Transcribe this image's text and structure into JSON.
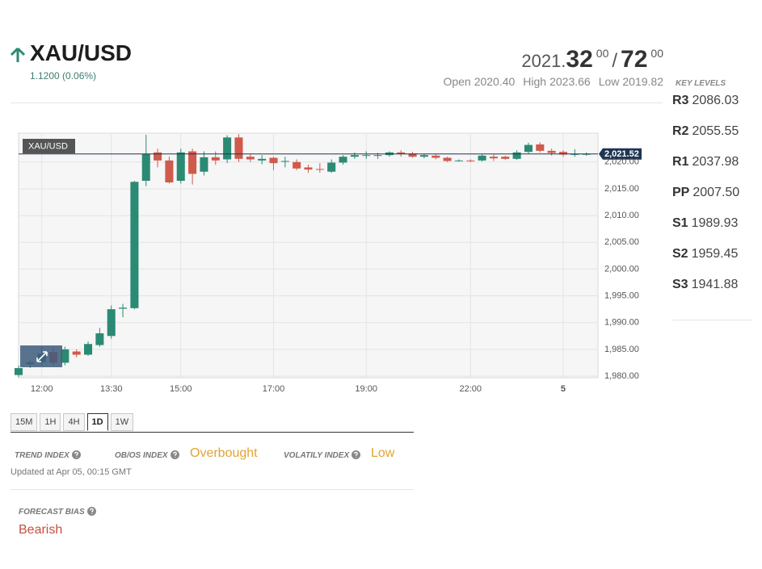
{
  "header": {
    "symbol": "XAU/USD",
    "change": "1.1200 (0.06%)",
    "bid_prefix": "2021.",
    "bid_big": "32",
    "bid_small": "00",
    "separator": "/",
    "ask_big": "72",
    "ask_small": "00",
    "open_label": "Open",
    "open": "2020.40",
    "high_label": "High",
    "high": "2023.66",
    "low_label": "Low",
    "low": "2019.82"
  },
  "key_levels": {
    "title": "KEY LEVELS",
    "levels": [
      {
        "name": "R3",
        "value": "2086.03"
      },
      {
        "name": "R2",
        "value": "2055.55"
      },
      {
        "name": "R1",
        "value": "2037.98"
      },
      {
        "name": "PP",
        "value": "2007.50"
      },
      {
        "name": "S1",
        "value": "1989.93"
      },
      {
        "name": "S2",
        "value": "1959.45"
      },
      {
        "name": "S3",
        "value": "1941.88"
      }
    ]
  },
  "chart_data": {
    "type": "candlestick",
    "grid": true,
    "series": [
      {
        "name": "XAU/USD",
        "up_color": "#2b8a73",
        "down_color": "#d05a4b",
        "open": [
          1980.2,
          1982.2,
          1982.6,
          1984.5,
          1982.5,
          1984.6,
          1984.0,
          1985.8,
          1987.5,
          1992.6,
          1992.7,
          2016.5,
          2021.8,
          2020.3,
          2016.5,
          2022.0,
          2018.2,
          2020.9,
          2020.5,
          2024.6,
          2021.0,
          2020.3,
          2020.8,
          2020.1,
          2020.0,
          2019.0,
          2018.7,
          2018.2,
          2019.9,
          2021.0,
          2021.3,
          2021.3,
          2021.3,
          2021.8,
          2021.6,
          2021.0,
          2021.2,
          2020.8,
          2020.3,
          2020.3,
          2020.3,
          2021.0,
          2021.0,
          2020.6,
          2021.9,
          2023.3,
          2022.1,
          2021.9,
          2021.5,
          2021.5
        ],
        "high": [
          1982.0,
          1983.0,
          1985.5,
          1985.5,
          1985.5,
          1985.0,
          1986.5,
          1989.0,
          1993.2,
          1993.5,
          2016.5,
          2025.1,
          2022.5,
          2021.0,
          2022.5,
          2022.5,
          2022.0,
          2022.0,
          2025.0,
          2025.2,
          2021.5,
          2021.3,
          2021.0,
          2021.0,
          2020.5,
          2019.5,
          2019.8,
          2020.5,
          2021.3,
          2021.8,
          2022.0,
          2021.7,
          2022.0,
          2022.2,
          2021.9,
          2021.6,
          2021.5,
          2021.0,
          2020.5,
          2020.5,
          2021.5,
          2021.4,
          2021.2,
          2022.2,
          2023.6,
          2023.7,
          2022.5,
          2022.2,
          2022.4,
          2021.8
        ],
        "low": [
          1979.8,
          1981.5,
          1982.0,
          1982.0,
          1982.0,
          1983.5,
          1983.8,
          1985.5,
          1987.0,
          1991.0,
          1992.5,
          2015.5,
          2019.0,
          2016.0,
          2016.0,
          2015.8,
          2017.5,
          2019.5,
          2019.8,
          2020.0,
          2020.0,
          2019.6,
          2018.5,
          2019.0,
          2018.5,
          2018.0,
          2018.0,
          2018.0,
          2019.5,
          2020.6,
          2020.6,
          2020.6,
          2021.0,
          2021.0,
          2020.8,
          2020.7,
          2020.5,
          2020.0,
          2020.1,
          2020.0,
          2020.1,
          2020.2,
          2020.4,
          2020.4,
          2021.6,
          2021.8,
          2021.2,
          2021.0,
          2021.0,
          2021.2
        ],
        "close": [
          1981.5,
          1982.6,
          1984.2,
          1982.5,
          1985.0,
          1984.0,
          1986.0,
          1988.0,
          1992.5,
          1992.8,
          2016.3,
          2021.5,
          2020.3,
          2016.2,
          2021.8,
          2017.8,
          2020.9,
          2020.3,
          2024.6,
          2020.6,
          2020.5,
          2020.6,
          2019.8,
          2020.2,
          2018.8,
          2018.6,
          2018.6,
          2019.9,
          2021.0,
          2021.3,
          2021.3,
          2021.3,
          2021.8,
          2021.5,
          2021.0,
          2021.3,
          2020.8,
          2020.2,
          2020.3,
          2020.2,
          2021.2,
          2020.7,
          2020.6,
          2021.8,
          2023.2,
          2022.1,
          2021.7,
          2021.4,
          2021.5,
          2021.52
        ]
      }
    ],
    "x": [
      0,
      1,
      2,
      3,
      4,
      5,
      6,
      7,
      8,
      9,
      10,
      11,
      12,
      13,
      14,
      15,
      16,
      17,
      18,
      19,
      20,
      21,
      22,
      23,
      24,
      25,
      26,
      27,
      28,
      29,
      30,
      31,
      32,
      33,
      34,
      35,
      36,
      37,
      38,
      39,
      40,
      41,
      42,
      43,
      44,
      45,
      46,
      47,
      48,
      49
    ],
    "xlim": [
      0,
      50
    ],
    "xticks": [
      {
        "value": 2,
        "label": "12:00"
      },
      {
        "value": 8,
        "label": "13:30"
      },
      {
        "value": 14,
        "label": "15:00"
      },
      {
        "value": 22,
        "label": "17:00"
      },
      {
        "value": 30,
        "label": "19:00"
      },
      {
        "value": 39,
        "label": "22:00"
      },
      {
        "value": 47,
        "label": "5"
      }
    ],
    "ylim": [
      1979.7,
      2025.4
    ],
    "yticks": [
      {
        "value": 1980,
        "label": "1,980.00"
      },
      {
        "value": 1985,
        "label": "1,985.00"
      },
      {
        "value": 1990,
        "label": "1,990.00"
      },
      {
        "value": 1995,
        "label": "1,995.00"
      },
      {
        "value": 2000,
        "label": "2,000.00"
      },
      {
        "value": 2005,
        "label": "2,005.00"
      },
      {
        "value": 2010,
        "label": "2,010.00"
      },
      {
        "value": 2015,
        "label": "2,015.00"
      },
      {
        "value": 2020,
        "label": "2,020.00"
      }
    ],
    "last_price": {
      "value": 2021.52,
      "label": "2,021.52"
    }
  },
  "timeframes": {
    "options": [
      "15M",
      "1H",
      "4H",
      "1D",
      "1W"
    ],
    "active": "1D"
  },
  "indexes": {
    "trend_label": "TREND INDEX",
    "obos_label": "OB/OS INDEX",
    "obos_value": "Overbought",
    "volatility_label": "VOLATILY INDEX",
    "volatility_value": "Low",
    "updated": "Updated at Apr 05, 00:15 GMT"
  },
  "forecast": {
    "label": "FORECAST BIAS",
    "value": "Bearish"
  }
}
